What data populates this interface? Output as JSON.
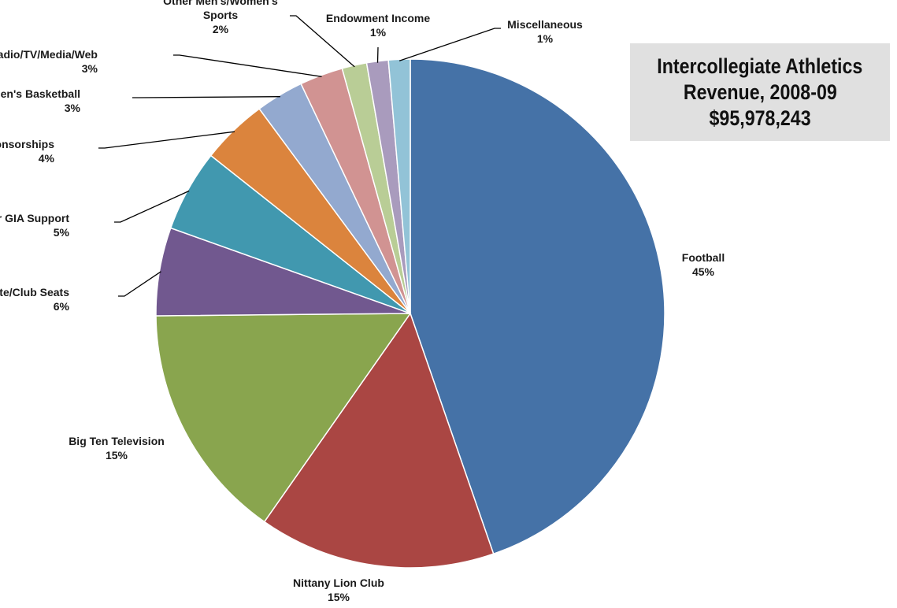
{
  "chart_data": {
    "type": "pie",
    "title_lines": [
      "Intercollegiate Athletics",
      "Revenue, 2008-09",
      "$95,978,243"
    ],
    "slices": [
      {
        "name_lines": [
          "Football"
        ],
        "pct_label": "45%",
        "value": 45.5,
        "color": "#4572A7"
      },
      {
        "name_lines": [
          "Nittany Lion Club"
        ],
        "pct_label": "15%",
        "value": 15.3,
        "color": "#AA4643"
      },
      {
        "name_lines": [
          "Big Ten Television"
        ],
        "pct_label": "15%",
        "value": 15.4,
        "color": "#89A54E"
      },
      {
        "name_lines": [
          "Suite/Club Seats"
        ],
        "pct_label": "6%",
        "value": 5.7,
        "color": "#71588F"
      },
      {
        "name_lines": [
          "Other GIA Support"
        ],
        "pct_label": "5%",
        "value": 5.3,
        "color": "#4198AF"
      },
      {
        "name_lines": [
          "Sponsorships"
        ],
        "pct_label": "4%",
        "value": 4.3,
        "color": "#DB843D"
      },
      {
        "name_lines": [
          "Men's Basketball"
        ],
        "pct_label": "3%",
        "value": 3.1,
        "color": "#93A9CF"
      },
      {
        "name_lines": [
          "Radio/TV/Media/Web"
        ],
        "pct_label": "3%",
        "value": 2.8,
        "color": "#D19392"
      },
      {
        "name_lines": [
          "Other Men's/Women's",
          "Sports"
        ],
        "pct_label": "2%",
        "value": 1.6,
        "color": "#B9CD96"
      },
      {
        "name_lines": [
          "Endowment Income"
        ],
        "pct_label": "1%",
        "value": 1.4,
        "color": "#A99BBD"
      },
      {
        "name_lines": [
          "Miscellaneous"
        ],
        "pct_label": "1%",
        "value": 1.4,
        "color": "#92C3D7"
      }
    ],
    "start_angle_deg": 0,
    "direction": "clockwise"
  }
}
